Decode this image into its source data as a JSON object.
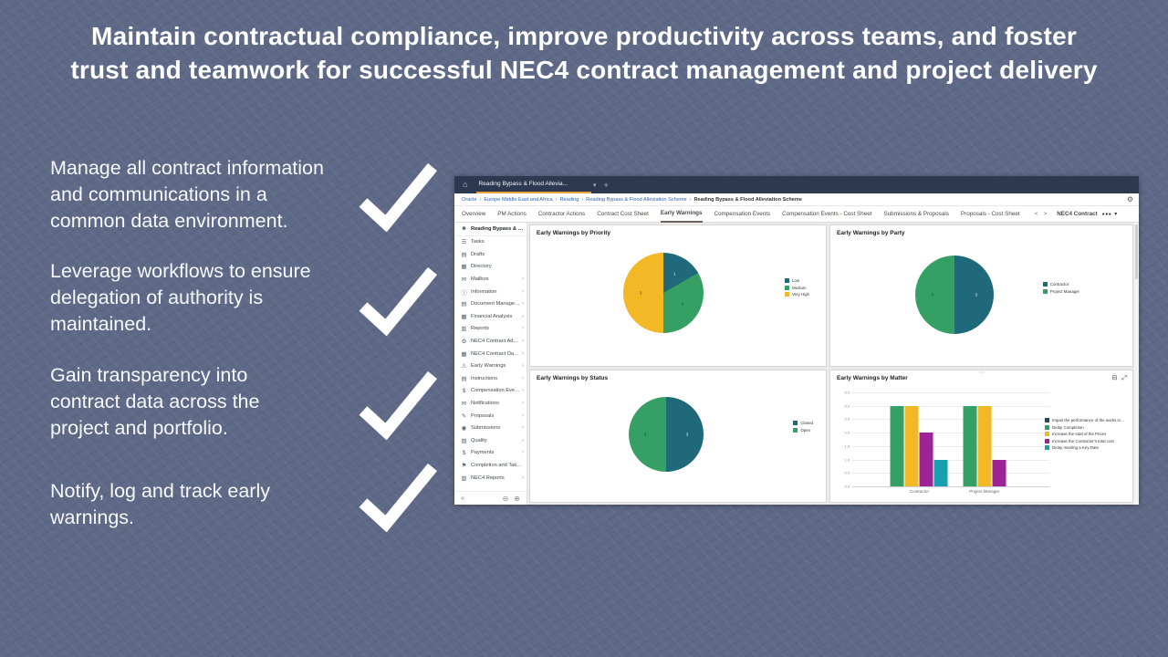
{
  "slide": {
    "title_line1": "Maintain contractual compliance, improve productivity across teams, and foster",
    "title_line2": "trust and teamwork for successful NEC4 contract management and project delivery",
    "bullets": [
      {
        "lines": [
          "Manage all contract information",
          "and communications in a",
          "common data environment."
        ]
      },
      {
        "lines": [
          "Leverage workflows to ensure",
          "delegation of authority is",
          "maintained."
        ]
      },
      {
        "lines": [
          "Gain transparency into",
          "contract data across the",
          "project and portfolio."
        ]
      },
      {
        "lines": [
          "Notify, log and track early",
          "warnings."
        ]
      }
    ]
  },
  "app": {
    "topbar": {
      "project_tab": "Reading Bypass & Flood Allevia...",
      "add_label": "+"
    },
    "breadcrumb": [
      "Oracle",
      "Europe Middle East and Africa",
      "Reading",
      "Reading Bypass & Flood Alleviation Scheme",
      "Reading Bypass & Flood Alleviation Scheme"
    ],
    "tabs": {
      "items": [
        "Overview",
        "PM Actions",
        "Contractor Actions",
        "Contract Cost Sheet",
        "Early Warnings",
        "Compensation Events",
        "Compensation Events - Cost Sheet",
        "Submissions & Proposals",
        "Proposals - Cost Sheet"
      ],
      "active": "Early Warnings",
      "contract_label": "NEC4 Contract"
    },
    "sidebar": {
      "project": "Reading Bypass & Flo...",
      "items": [
        {
          "label": "Tasks",
          "icon": "tasks-icon",
          "chevron": false
        },
        {
          "label": "Drafts",
          "icon": "drafts-icon",
          "chevron": false
        },
        {
          "label": "Directory",
          "icon": "directory-icon",
          "chevron": false
        },
        {
          "label": "Mailbox",
          "icon": "mailbox-icon",
          "chevron": true
        },
        {
          "label": "Information",
          "icon": "information-icon",
          "chevron": true
        },
        {
          "label": "Document Manager ...",
          "icon": "document-manager-icon",
          "chevron": true
        },
        {
          "label": "Financial Analysis",
          "icon": "financial-analysis-icon",
          "chevron": true
        },
        {
          "label": "Reports",
          "icon": "reports-icon",
          "chevron": true
        },
        {
          "label": "NEC4 Contract Adm...",
          "icon": "contract-admin-icon",
          "chevron": true
        },
        {
          "label": "NEC4 Contract Dates",
          "icon": "contract-dates-icon",
          "chevron": true
        },
        {
          "label": "Early Warnings",
          "icon": "early-warnings-icon",
          "chevron": true
        },
        {
          "label": "Instructions",
          "icon": "instructions-icon",
          "chevron": true
        },
        {
          "label": "Compensation Events",
          "icon": "compensation-events-icon",
          "chevron": true
        },
        {
          "label": "Notifications",
          "icon": "notifications-icon",
          "chevron": true
        },
        {
          "label": "Proposals",
          "icon": "proposals-icon",
          "chevron": true
        },
        {
          "label": "Submissions",
          "icon": "submissions-icon",
          "chevron": true
        },
        {
          "label": "Quality",
          "icon": "quality-icon",
          "chevron": true
        },
        {
          "label": "Payments",
          "icon": "payments-icon",
          "chevron": true
        },
        {
          "label": "Completion and Take...",
          "icon": "completion-icon",
          "chevron": false
        },
        {
          "label": "NEC4 Reports",
          "icon": "nec4-reports-icon",
          "chevron": true
        }
      ]
    },
    "colors": {
      "topbar_navy": "#2d3950",
      "tab_accent_yellow": "#e8a33d",
      "link_blue": "#2e62b8",
      "teal": "#20697b",
      "green": "#35a063",
      "yellow": "#f2b826",
      "magenta": "#9e2396",
      "cyan": "#18a0b0",
      "navy": "#1a4f63"
    }
  },
  "chart_data": [
    {
      "type": "pie",
      "title": "Early Warnings by Priority",
      "slices": [
        {
          "label": "Low",
          "value": 1,
          "color": "#20697b",
          "label_color": "#e8eef0"
        },
        {
          "label": "Medium",
          "value": 2,
          "color": "#35a063",
          "label_color": "#14452a"
        },
        {
          "label": "Very High",
          "value": 3,
          "color": "#f2b826",
          "label_color": "#5c4405"
        }
      ],
      "legend_position": "right"
    },
    {
      "type": "pie",
      "title": "Early Warnings by Party",
      "slices": [
        {
          "label": "Contractor",
          "value": 3,
          "color": "#20697b",
          "label_color": "#e8eef0"
        },
        {
          "label": "Project Manager",
          "value": 3,
          "color": "#35a063",
          "label_color": "#14452a"
        }
      ],
      "legend_position": "right"
    },
    {
      "type": "pie",
      "title": "Early Warnings by Status",
      "slices": [
        {
          "label": "Closed",
          "value": 3,
          "color": "#20697b",
          "label_color": "#e8eef0"
        },
        {
          "label": "Open",
          "value": 3,
          "color": "#35a063",
          "label_color": "#14452a"
        }
      ],
      "legend_position": "right"
    },
    {
      "type": "bar",
      "title": "Early Warnings by Matter",
      "categories": [
        "Contractor",
        "Project Manager"
      ],
      "series": [
        {
          "name": "Impair the performance of the works in use",
          "color": "#1a4f63",
          "values": [
            0,
            0
          ]
        },
        {
          "name": "Delay Completion",
          "color": "#35a063",
          "values": [
            3,
            3
          ]
        },
        {
          "name": "Increase the total of the Prices",
          "color": "#f2b826",
          "values": [
            3,
            3
          ]
        },
        {
          "name": "Increase the Contractor's total cost",
          "color": "#9e2396",
          "values": [
            2,
            1
          ]
        },
        {
          "name": "Delay meeting a Key Date",
          "color": "#18a0b0",
          "values": [
            1,
            0
          ]
        }
      ],
      "ylim": [
        0,
        3.5
      ],
      "yticks": [
        0,
        0.5,
        1,
        1.5,
        2,
        2.5,
        3,
        3.5
      ],
      "grid": true,
      "legend_position": "right"
    }
  ]
}
